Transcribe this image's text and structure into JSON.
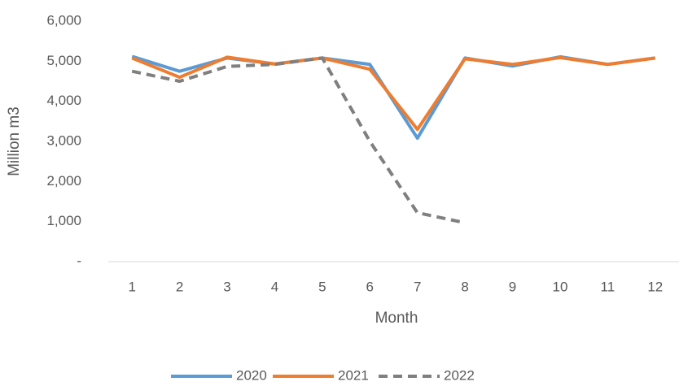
{
  "chart_data": {
    "type": "line",
    "y_label": "Million m3",
    "x_label": "Month",
    "categories": [
      "1",
      "2",
      "3",
      "4",
      "5",
      "6",
      "7",
      "8",
      "9",
      "10",
      "11",
      "12"
    ],
    "series": [
      {
        "name": "2020",
        "color": "#5b9bd5",
        "values": [
          5120,
          4750,
          5080,
          4930,
          5080,
          4920,
          3080,
          5080,
          4880,
          5110,
          4920,
          5080
        ]
      },
      {
        "name": "2021",
        "color": "#ed7d31",
        "values": [
          5080,
          4600,
          5100,
          4930,
          5080,
          4800,
          3300,
          5060,
          4920,
          5090,
          4920,
          5080
        ]
      },
      {
        "name": "2022",
        "color": "#7f7f7f",
        "dashed": true,
        "values": [
          4750,
          4500,
          4870,
          4920,
          5080,
          3000,
          1220,
          970,
          null,
          null,
          null,
          null
        ]
      }
    ],
    "ylim": [
      0,
      6000
    ],
    "yticks": [
      {
        "value": 0,
        "label": "-"
      },
      {
        "value": 1000,
        "label": "1,000"
      },
      {
        "value": 2000,
        "label": "2,000"
      },
      {
        "value": 3000,
        "label": "3,000"
      },
      {
        "value": 4000,
        "label": "4,000"
      },
      {
        "value": 5000,
        "label": "5,000"
      },
      {
        "value": 6000,
        "label": "6,000"
      }
    ],
    "grid": false,
    "legend": "bottom"
  }
}
